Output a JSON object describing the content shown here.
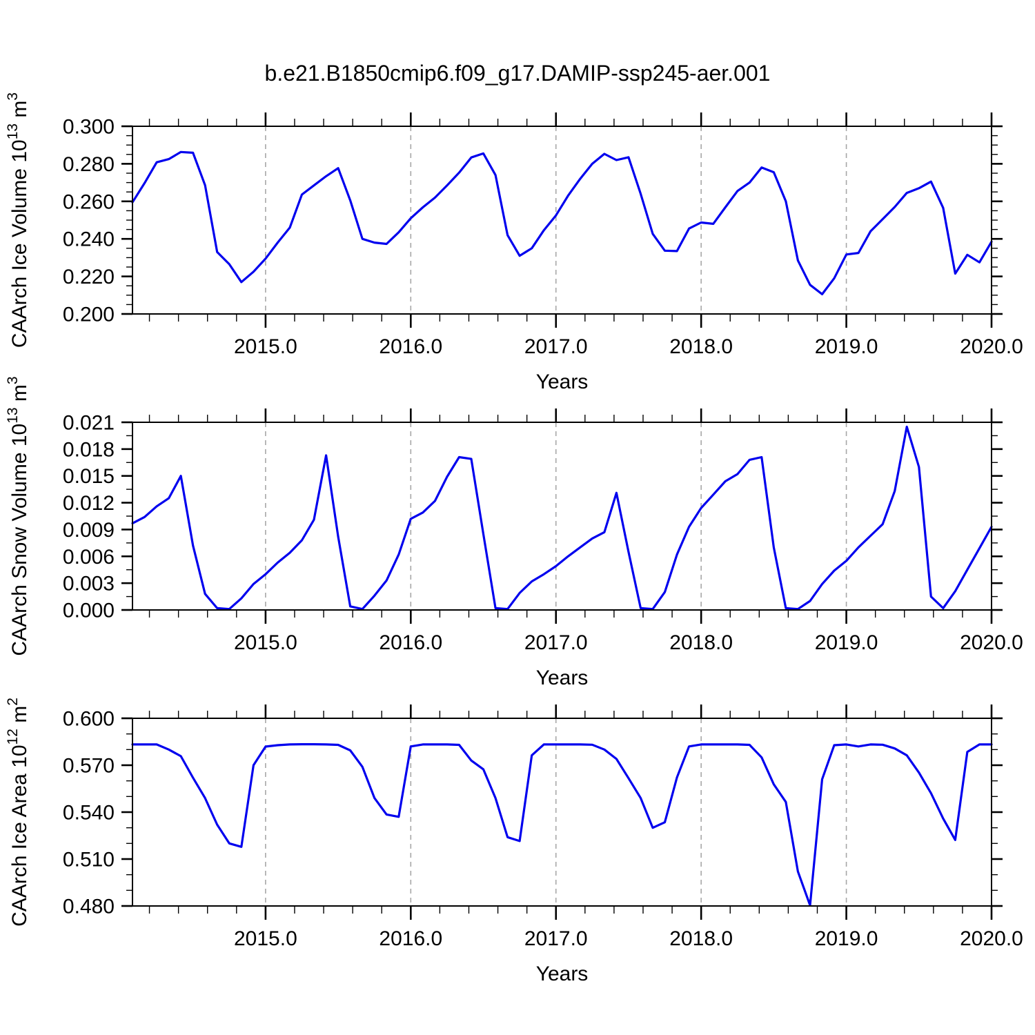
{
  "title": "b.e21.B1850cmip6.f09_g17.DAMIP-ssp245-aer.001",
  "chart_data": [
    {
      "type": "line",
      "ylabel_plain": "CAArch Ice Volume 10^13 m^3",
      "ylabel_parts": [
        {
          "t": "CAArch Ice Volume 10",
          "sup": false
        },
        {
          "t": "13",
          "sup": true
        },
        {
          "t": " m",
          "sup": false
        },
        {
          "t": "3",
          "sup": true
        }
      ],
      "xlabel": "Years",
      "ylim": [
        0.2,
        0.3
      ],
      "yticks": [
        0.2,
        0.22,
        0.24,
        0.26,
        0.28,
        0.3
      ],
      "ytick_labels": [
        "0.200",
        "0.220",
        "0.240",
        "0.260",
        "0.280",
        "0.300"
      ],
      "yminor_step": 0.005,
      "xlim": [
        2014.0833,
        2020.0
      ],
      "xticks": [
        2015.0,
        2016.0,
        2017.0,
        2018.0,
        2019.0,
        2020.0
      ],
      "xtick_labels": [
        "2015.0",
        "2016.0",
        "2017.0",
        "2018.0",
        "2019.0",
        "2020.0"
      ],
      "xminor_step": 0.2,
      "grid": "dashed-vertical-at-major-x",
      "legend": "none",
      "series": [
        {
          "name": "CAArch Ice Volume",
          "color": "#0000ee",
          "x_start": 2014.0833,
          "x_step": 0.0833333,
          "values": [
            0.2595,
            0.2697,
            0.2808,
            0.2825,
            0.2863,
            0.2859,
            0.2686,
            0.233,
            0.2265,
            0.217,
            0.2225,
            0.2295,
            0.238,
            0.246,
            0.2636,
            0.2685,
            0.2734,
            0.2777,
            0.2605,
            0.24,
            0.238,
            0.2373,
            0.2435,
            0.251,
            0.2568,
            0.262,
            0.2685,
            0.2753,
            0.2834,
            0.2855,
            0.274,
            0.242,
            0.231,
            0.235,
            0.2446,
            0.2525,
            0.263,
            0.272,
            0.28,
            0.2853,
            0.282,
            0.2835,
            0.264,
            0.2427,
            0.2337,
            0.2335,
            0.2455,
            0.2487,
            0.248,
            0.2568,
            0.2655,
            0.27,
            0.278,
            0.2755,
            0.26,
            0.2285,
            0.2155,
            0.2105,
            0.219,
            0.2317,
            0.2325,
            0.244,
            0.2505,
            0.257,
            0.2645,
            0.267,
            0.2705,
            0.2565,
            0.2215,
            0.2315,
            0.2275,
            0.2385
          ]
        }
      ]
    },
    {
      "type": "line",
      "ylabel_plain": "CAArch Snow Volume 10^13 m^3",
      "ylabel_parts": [
        {
          "t": "CAArch Snow Volume 10",
          "sup": false
        },
        {
          "t": "13",
          "sup": true
        },
        {
          "t": " m",
          "sup": false
        },
        {
          "t": "3",
          "sup": true
        }
      ],
      "xlabel": "Years",
      "ylim": [
        0.0,
        0.021
      ],
      "yticks": [
        0.0,
        0.003,
        0.006,
        0.009,
        0.012,
        0.015,
        0.018,
        0.021
      ],
      "ytick_labels": [
        "0.000",
        "0.003",
        "0.006",
        "0.009",
        "0.012",
        "0.015",
        "0.018",
        "0.021"
      ],
      "yminor_step": 0.0015,
      "xlim": [
        2014.0833,
        2020.0
      ],
      "xticks": [
        2015.0,
        2016.0,
        2017.0,
        2018.0,
        2019.0,
        2020.0
      ],
      "xtick_labels": [
        "2015.0",
        "2016.0",
        "2017.0",
        "2018.0",
        "2019.0",
        "2020.0"
      ],
      "xminor_step": 0.2,
      "grid": "dashed-vertical-at-major-x",
      "legend": "none",
      "series": [
        {
          "name": "CAArch Snow Volume",
          "color": "#0000ee",
          "x_start": 2014.0833,
          "x_step": 0.0833333,
          "values": [
            0.0097,
            0.0104,
            0.0116,
            0.0125,
            0.015,
            0.0072,
            0.0018,
            0.0002,
            0.0001,
            0.0013,
            0.0029,
            0.004,
            0.0053,
            0.0064,
            0.0078,
            0.0101,
            0.0173,
            0.0082,
            0.0004,
            0.0001,
            0.0016,
            0.0033,
            0.0062,
            0.0102,
            0.0109,
            0.0122,
            0.0149,
            0.0171,
            0.0169,
            0.0085,
            0.0002,
            0.0001,
            0.0019,
            0.0032,
            0.004,
            0.0049,
            0.006,
            0.007,
            0.008,
            0.0087,
            0.0131,
            0.0065,
            0.0002,
            0.0001,
            0.002,
            0.0062,
            0.0093,
            0.0114,
            0.0129,
            0.0144,
            0.0152,
            0.0168,
            0.0171,
            0.007,
            0.0002,
            0.0001,
            0.001,
            0.0029,
            0.0044,
            0.0055,
            0.007,
            0.0083,
            0.0096,
            0.0133,
            0.0205,
            0.016,
            0.0015,
            0.0002,
            0.0021,
            0.0045,
            0.0069,
            0.0093
          ]
        }
      ]
    },
    {
      "type": "line",
      "ylabel_plain": "CAArch Ice Area 10^12 m^2",
      "ylabel_parts": [
        {
          "t": "CAArch Ice Area 10",
          "sup": false
        },
        {
          "t": "12",
          "sup": true
        },
        {
          "t": " m",
          "sup": false
        },
        {
          "t": "2",
          "sup": true
        }
      ],
      "xlabel": "Years",
      "ylim": [
        0.48,
        0.6
      ],
      "yticks": [
        0.48,
        0.51,
        0.54,
        0.57,
        0.6
      ],
      "ytick_labels": [
        "0.480",
        "0.510",
        "0.540",
        "0.570",
        "0.600"
      ],
      "yminor_step": 0.01,
      "xlim": [
        2014.0833,
        2020.0
      ],
      "xticks": [
        2015.0,
        2016.0,
        2017.0,
        2018.0,
        2019.0,
        2020.0
      ],
      "xtick_labels": [
        "2015.0",
        "2016.0",
        "2017.0",
        "2018.0",
        "2019.0",
        "2020.0"
      ],
      "xminor_step": 0.2,
      "grid": "dashed-vertical-at-major-x",
      "legend": "none",
      "series": [
        {
          "name": "CAArch Ice Area",
          "color": "#0000ee",
          "x_start": 2014.0833,
          "x_step": 0.0833333,
          "values": [
            0.5833,
            0.5833,
            0.5833,
            0.58,
            0.5758,
            0.562,
            0.549,
            0.532,
            0.52,
            0.5178,
            0.57,
            0.5819,
            0.5828,
            0.5833,
            0.5834,
            0.5834,
            0.5833,
            0.583,
            0.5795,
            0.569,
            0.549,
            0.5385,
            0.537,
            0.582,
            0.5833,
            0.5833,
            0.5833,
            0.583,
            0.573,
            0.5674,
            0.549,
            0.524,
            0.5215,
            0.5763,
            0.5833,
            0.5833,
            0.5833,
            0.5833,
            0.5831,
            0.58,
            0.574,
            0.5617,
            0.549,
            0.53,
            0.5335,
            0.5622,
            0.582,
            0.5833,
            0.5833,
            0.5833,
            0.5833,
            0.583,
            0.575,
            0.5578,
            0.5465,
            0.502,
            0.4804,
            0.561,
            0.5828,
            0.5833,
            0.582,
            0.5833,
            0.5831,
            0.5807,
            0.5763,
            0.5653,
            0.5521,
            0.5359,
            0.5222,
            0.5785,
            0.5833,
            0.5833
          ]
        }
      ]
    }
  ],
  "style": {
    "line_color": "#0000ee",
    "axis_color": "#000000",
    "grid_color": "#a6a6a6",
    "background": "#ffffff"
  }
}
